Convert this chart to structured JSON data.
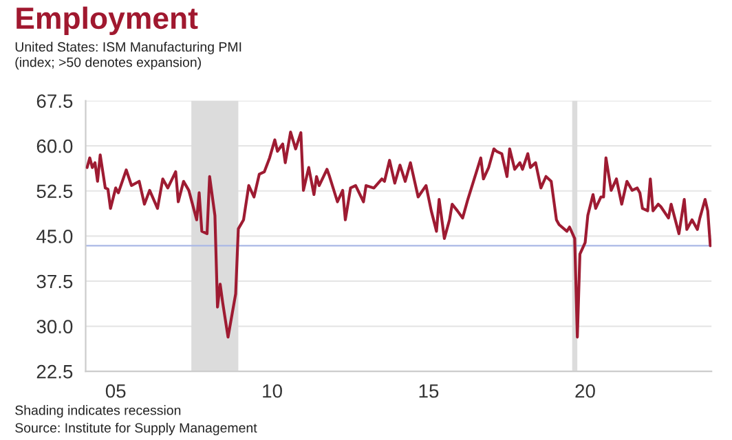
{
  "chart_data": {
    "type": "line",
    "title": "Employment",
    "subtitle": "United States: ISM Manufacturing PMI\n(index; >50 denotes expansion)",
    "annotations": [
      "Shading indicates recession",
      "Source: Institute for Supply Management"
    ],
    "x": [
      "2004-08",
      "2004-09",
      "2004-10",
      "2004-11",
      "2004-12",
      "2005-01",
      "2005-03",
      "2005-04",
      "2005-05",
      "2005-07",
      "2005-08",
      "2005-11",
      "2006-01",
      "2006-04",
      "2006-06",
      "2006-08",
      "2006-11",
      "2007-01",
      "2007-03",
      "2007-06",
      "2007-07",
      "2007-09",
      "2007-11",
      "2008-02",
      "2008-03",
      "2008-04",
      "2008-06",
      "2008-07",
      "2008-09",
      "2008-10",
      "2008-11",
      "2008-12",
      "2009-02",
      "2009-05",
      "2009-06",
      "2009-08",
      "2009-10",
      "2009-12",
      "2010-02",
      "2010-04",
      "2010-06",
      "2010-08",
      "2010-09",
      "2010-11",
      "2010-12",
      "2011-02",
      "2011-04",
      "2011-06",
      "2011-07",
      "2011-09",
      "2011-11",
      "2011-12",
      "2012-01",
      "2012-04",
      "2012-05",
      "2012-08",
      "2012-10",
      "2012-11",
      "2013-01",
      "2013-03",
      "2013-06",
      "2013-07",
      "2013-10",
      "2014-01",
      "2014-02",
      "2014-04",
      "2014-06",
      "2014-08",
      "2014-10",
      "2014-12",
      "2015-03",
      "2015-06",
      "2015-08",
      "2015-10",
      "2015-11",
      "2016-01",
      "2016-03",
      "2016-04",
      "2016-06",
      "2016-08",
      "2016-10",
      "2017-01",
      "2017-03",
      "2017-04",
      "2017-06",
      "2017-08",
      "2017-09",
      "2017-11",
      "2018-01",
      "2018-02",
      "2018-04",
      "2018-06",
      "2018-07",
      "2018-09",
      "2018-10",
      "2018-12",
      "2019-02",
      "2019-04",
      "2019-06",
      "2019-08",
      "2019-09",
      "2019-12",
      "2020-01",
      "2020-03",
      "2020-04",
      "2020-05",
      "2020-07",
      "2020-08",
      "2020-10",
      "2020-11",
      "2021-01",
      "2021-02",
      "2021-03",
      "2021-05",
      "2021-07",
      "2021-09",
      "2021-11",
      "2022-01",
      "2022-03",
      "2022-04",
      "2022-05",
      "2022-07",
      "2022-08",
      "2022-09",
      "2022-11",
      "2022-12",
      "2023-03",
      "2023-04",
      "2023-07",
      "2023-09",
      "2023-10",
      "2023-12",
      "2024-02",
      "2024-03",
      "2024-05",
      "2024-06",
      "2024-07"
    ],
    "series": [
      {
        "color": "#9e1b32",
        "values": [
          56.4,
          58.0,
          56.4,
          57.2,
          54.1,
          58.5,
          53.0,
          52.8,
          49.6,
          53.0,
          52.2,
          56.0,
          53.4,
          54.1,
          50.3,
          52.6,
          49.6,
          54.5,
          53.0,
          55.7,
          50.7,
          54.1,
          52.6,
          47.7,
          52.2,
          45.8,
          45.4,
          54.9,
          48.4,
          33.2,
          37.0,
          33.9,
          28.2,
          35.4,
          46.2,
          47.7,
          53.4,
          51.5,
          55.3,
          55.7,
          58.0,
          61.0,
          59.1,
          60.3,
          57.2,
          62.3,
          59.5,
          62.2,
          52.6,
          56.4,
          51.9,
          54.9,
          53.4,
          56.1,
          54.9,
          50.7,
          52.6,
          47.7,
          53.0,
          53.4,
          50.7,
          53.4,
          53.0,
          54.5,
          54.1,
          57.6,
          53.8,
          56.8,
          54.1,
          57.2,
          51.5,
          53.4,
          49.2,
          45.8,
          51.1,
          44.6,
          47.7,
          50.3,
          49.2,
          48.0,
          51.1,
          55.3,
          58.0,
          54.5,
          56.4,
          59.5,
          59.1,
          58.7,
          54.9,
          59.5,
          56.1,
          57.2,
          56.1,
          58.7,
          56.4,
          57.2,
          53.0,
          54.9,
          54.1,
          47.7,
          46.9,
          45.8,
          46.5,
          44.6,
          28.2,
          42.0,
          43.9,
          48.4,
          51.9,
          49.6,
          51.5,
          51.5,
          58.0,
          52.6,
          54.5,
          50.3,
          54.1,
          52.6,
          53.0,
          52.2,
          49.6,
          49.2,
          54.5,
          49.2,
          50.3,
          49.9,
          48.0,
          50.3,
          45.4,
          51.1,
          46.1,
          47.7,
          46.1,
          48.0,
          51.1,
          49.2,
          43.4
        ]
      }
    ],
    "xlim": [
      "2004-07-15",
      "2024-07-15"
    ],
    "xticks": [
      {
        "value": "2005-07",
        "label": "05"
      },
      {
        "value": "2010-07",
        "label": "10"
      },
      {
        "value": "2015-07",
        "label": "15"
      },
      {
        "value": "2020-07",
        "label": "20"
      }
    ],
    "ylim": [
      22.5,
      67.5
    ],
    "yticks": [
      {
        "value": 22.5,
        "label": "22.5"
      },
      {
        "value": 30,
        "label": "30.0"
      },
      {
        "value": 37.5,
        "label": "37.5"
      },
      {
        "value": 45,
        "label": "45.0"
      },
      {
        "value": 52.5,
        "label": "52.5"
      },
      {
        "value": 60,
        "label": "60.0"
      },
      {
        "value": 67.5,
        "label": "67.5"
      }
    ],
    "bands": [
      {
        "axis": "x",
        "from": "2007-12",
        "to": "2009-06",
        "color": "#dcdcdc"
      },
      {
        "axis": "x",
        "from": "2020-02",
        "to": "2020-04",
        "color": "#dcdcdc"
      }
    ],
    "ref_lines": [
      {
        "axis": "y",
        "value": 43.4,
        "color": "#aab8e6"
      }
    ],
    "grid": "y",
    "line_style": "solid",
    "marker": "none"
  }
}
